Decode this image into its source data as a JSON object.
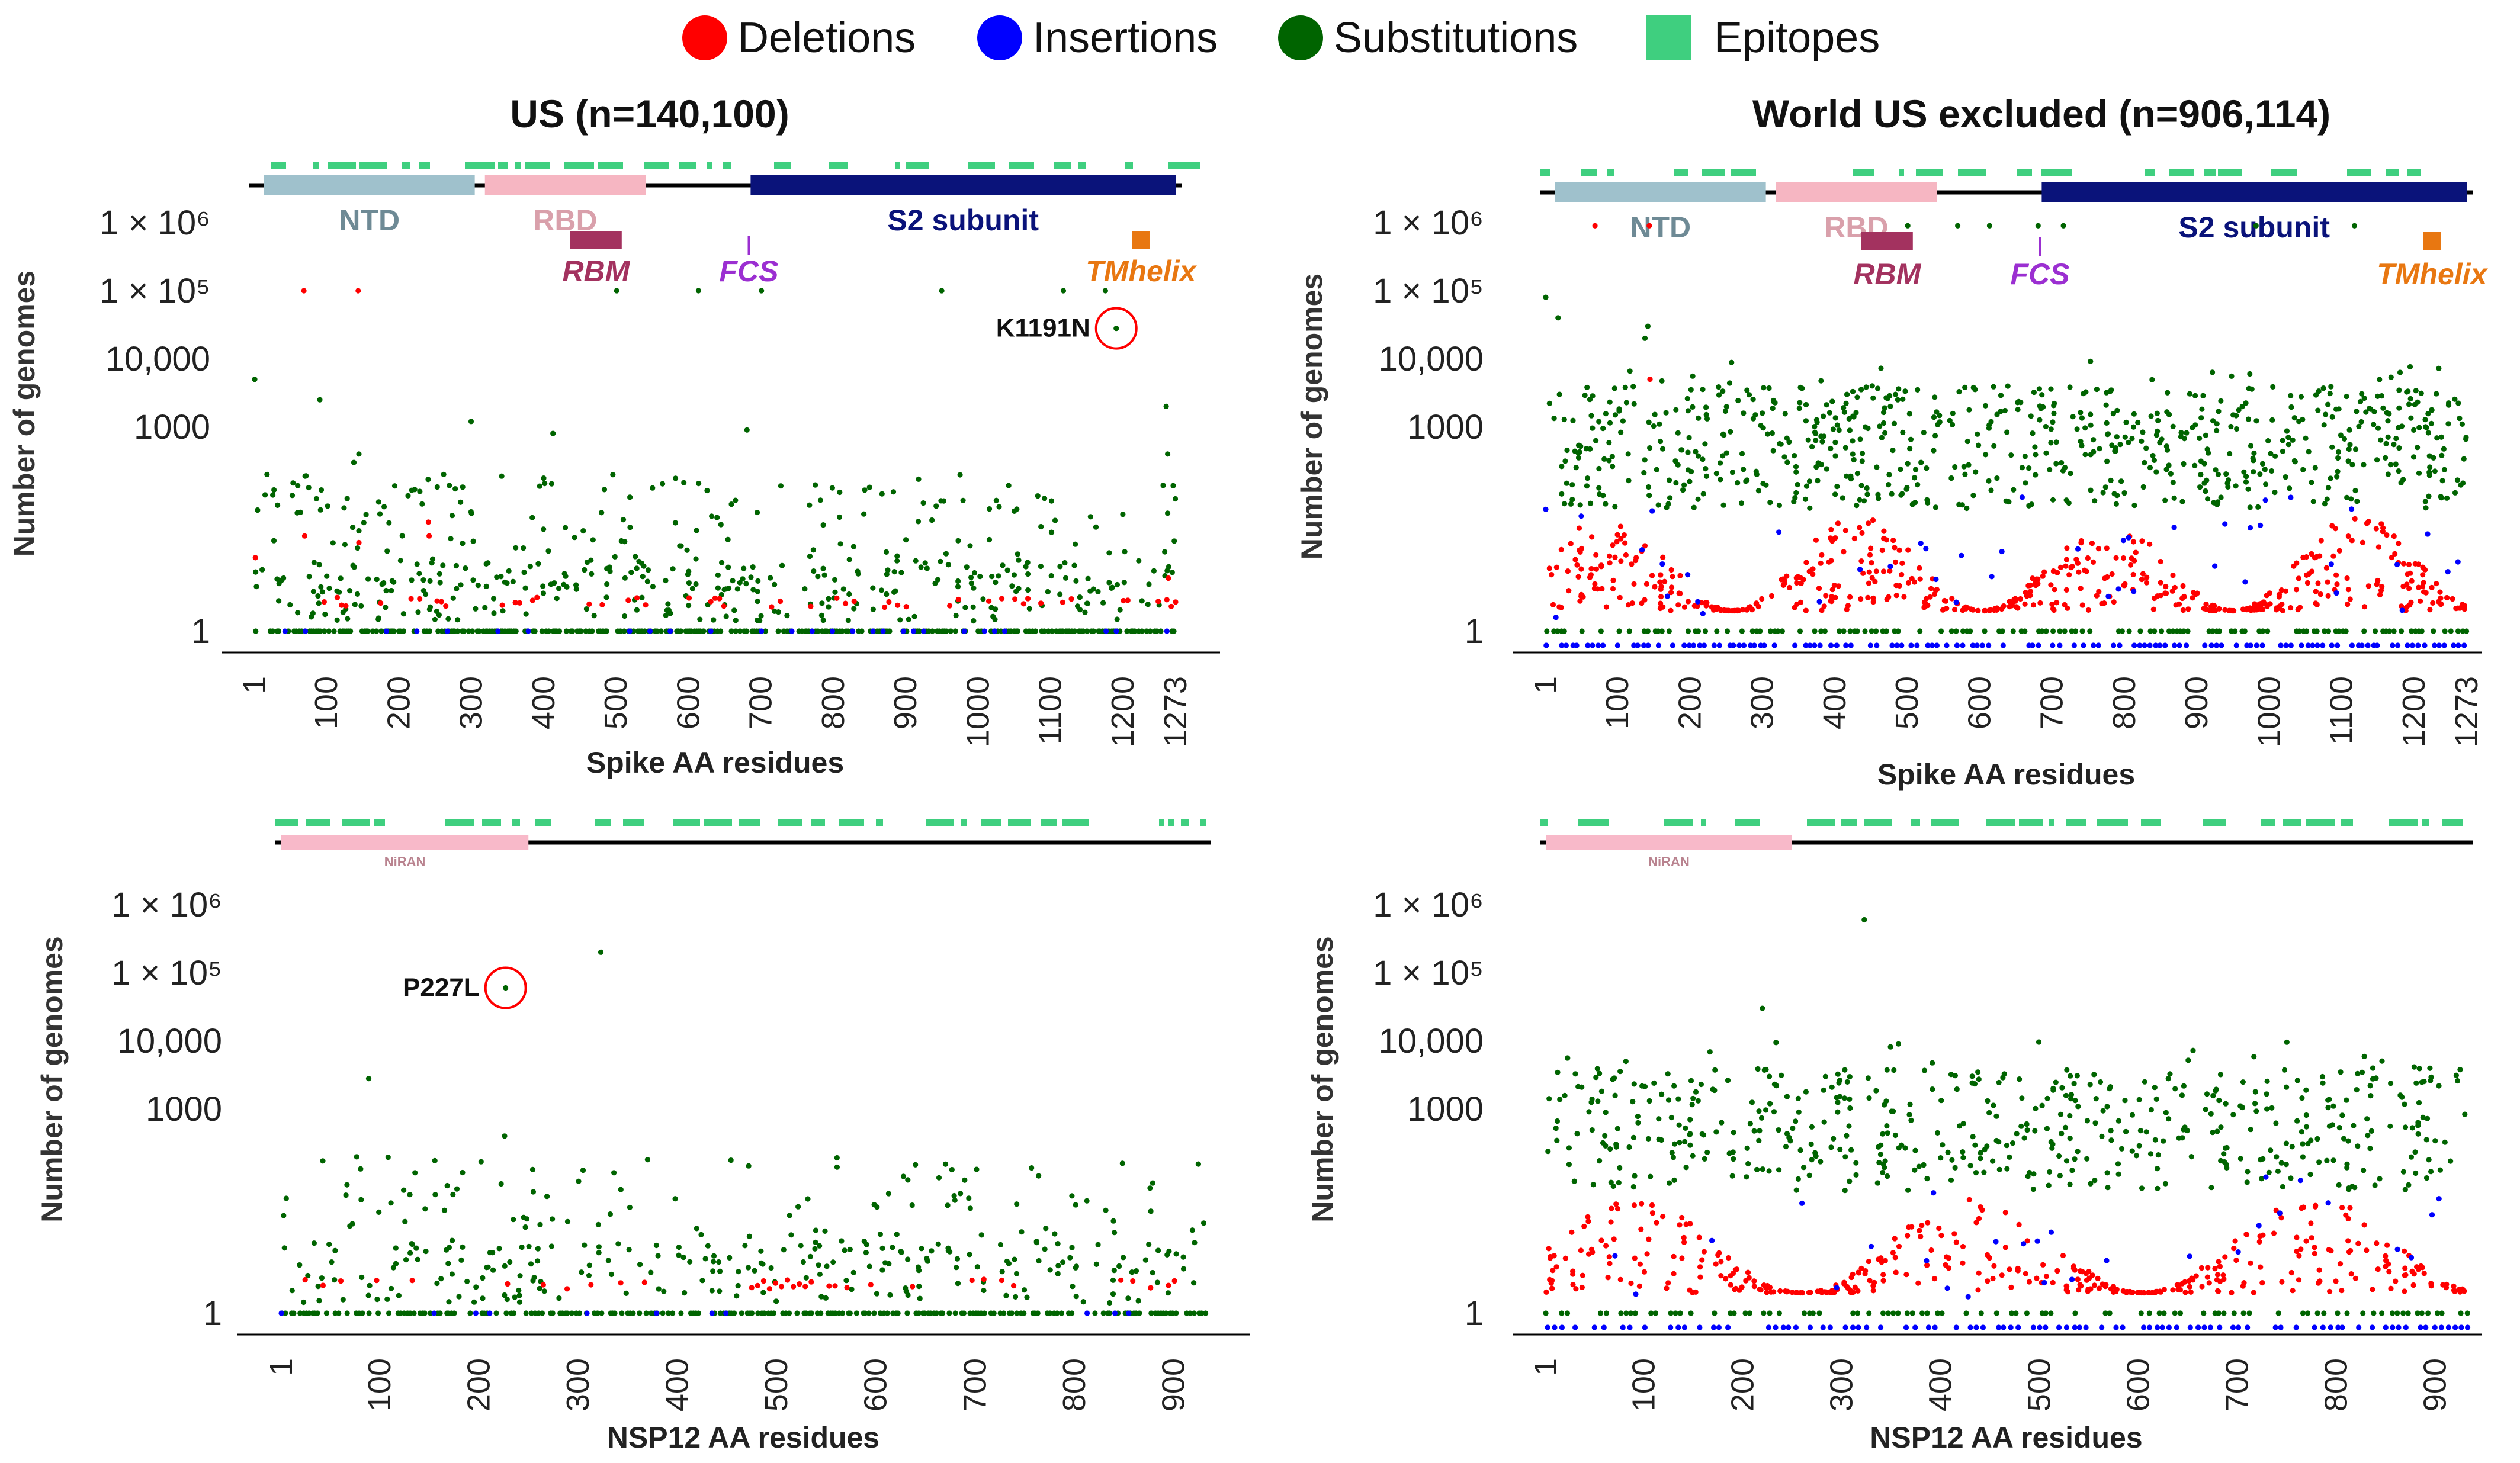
{
  "colors": {
    "deletions": "#ff0000",
    "insertions": "#0000ff",
    "substitutions": "#006400",
    "epitopes": "#3fcf7f",
    "NTD": "#9fc1cc",
    "RBD": "#f6b6c2",
    "S2": "#0a137a",
    "RBM": "#a3325f",
    "FCS": "#9b2fd1",
    "TMhelix": "#e87711",
    "NiRAN": "#f8b9c9"
  },
  "legend": [
    {
      "label": "Deletions",
      "color_key": "deletions",
      "shape": "circle"
    },
    {
      "label": "Insertions",
      "color_key": "insertions",
      "shape": "circle"
    },
    {
      "label": "Substitutions",
      "color_key": "substitutions",
      "shape": "circle"
    },
    {
      "label": "Epitopes",
      "color_key": "epitopes",
      "shape": "square"
    }
  ],
  "shared": {
    "ylabel": "Number of genomes",
    "ytick_labels": [
      "1",
      "1000",
      "10,000",
      "1 × 10⁵",
      "1 × 10⁶"
    ],
    "ytick_values": [
      1,
      1000,
      10000,
      100000,
      1000000
    ]
  },
  "chart_data": [
    {
      "id": "us-spike",
      "type": "scatter",
      "title": "US (n=140,100)",
      "xlabel": "Spike AA residues",
      "ylabel": "Number of genomes",
      "xlim": [
        1,
        1273
      ],
      "xtick_values": [
        1,
        100,
        200,
        300,
        400,
        500,
        600,
        700,
        800,
        900,
        1000,
        1100,
        1200,
        1273
      ],
      "xtick_labels": [
        "1",
        "100",
        "200",
        "300",
        "400",
        "500",
        "600",
        "700",
        "800",
        "900",
        "1000",
        "1100",
        "1200",
        "1273"
      ],
      "domains": [
        {
          "label": "NTD",
          "start": 14,
          "end": 305,
          "color_key": "NTD"
        },
        {
          "label": "RBD",
          "start": 319,
          "end": 541,
          "color_key": "RBD"
        },
        {
          "label": "S2 subunit",
          "start": 686,
          "end": 1273,
          "color_key": "S2"
        }
      ],
      "motifs": [
        {
          "label": "RBM",
          "start": 437,
          "end": 508,
          "color_key": "RBM"
        },
        {
          "label": "FCS",
          "start": 682,
          "end": 685,
          "color_key": "FCS"
        },
        {
          "label": "TMhelix",
          "start": 1213,
          "end": 1237,
          "color_key": "TMhelix"
        }
      ],
      "annotation": {
        "label": "K1191N",
        "x": 1191,
        "y": 28000
      },
      "series": [
        {
          "name": "Substitutions",
          "color_key": "substitutions",
          "profile": "us-spike",
          "peaks": [
            [
              1,
              5000
            ],
            [
              5,
              60
            ],
            [
              18,
              200
            ],
            [
              26,
              100
            ],
            [
              54,
              150
            ],
            [
              91,
              2500
            ],
            [
              138,
              300
            ],
            [
              145,
              400
            ],
            [
              222,
              120
            ],
            [
              262,
              200
            ],
            [
              300,
              1200
            ],
            [
              413,
              800
            ],
            [
              484,
              120
            ],
            [
              501,
              100000
            ],
            [
              614,
              100000
            ],
            [
              681,
              900
            ],
            [
              701,
              100000
            ],
            [
              950,
              100000
            ],
            [
              1118,
              100000
            ],
            [
              1176,
              100000
            ],
            [
              1191,
              28000
            ],
            [
              1260,
              2000
            ],
            [
              1262,
              400
            ]
          ]
        },
        {
          "name": "Deletions",
          "color_key": "deletions",
          "profile": "us-spike-del",
          "peaks": [
            [
              2,
              12
            ],
            [
              69,
              100000
            ],
            [
              70,
              25
            ],
            [
              144,
              100000
            ],
            [
              145,
              20
            ],
            [
              241,
              40
            ],
            [
              242,
              25
            ],
            [
              1263,
              6
            ]
          ]
        },
        {
          "name": "Insertions",
          "color_key": "insertions",
          "profile": "us-spike-ins",
          "peaks": []
        }
      ]
    },
    {
      "id": "world-spike",
      "type": "scatter",
      "title": "World US excluded (n=906,114)",
      "xlabel": "Spike AA residues",
      "ylabel": "Number of genomes",
      "xlim": [
        1,
        1273
      ],
      "xtick_values": [
        1,
        100,
        200,
        300,
        400,
        500,
        600,
        700,
        800,
        900,
        1000,
        1100,
        1200,
        1273
      ],
      "xtick_labels": [
        "1",
        "100",
        "200",
        "300",
        "400",
        "500",
        "600",
        "700",
        "800",
        "900",
        "1000",
        "1100",
        "1200",
        "1273"
      ],
      "domains": [
        {
          "label": "NTD",
          "start": 14,
          "end": 305,
          "color_key": "NTD"
        },
        {
          "label": "RBD",
          "start": 319,
          "end": 541,
          "color_key": "RBD"
        },
        {
          "label": "S2 subunit",
          "start": 686,
          "end": 1273,
          "color_key": "S2"
        }
      ],
      "motifs": [
        {
          "label": "RBM",
          "start": 437,
          "end": 508,
          "color_key": "RBM"
        },
        {
          "label": "FCS",
          "start": 682,
          "end": 685,
          "color_key": "FCS"
        },
        {
          "label": "TMhelix",
          "start": 1213,
          "end": 1237,
          "color_key": "TMhelix"
        }
      ],
      "series": [
        {
          "name": "Substitutions",
          "color_key": "substitutions",
          "profile": "world-spike",
          "peaks": [
            [
              1,
              80000
            ],
            [
              18,
              40000
            ],
            [
              20,
              3000
            ],
            [
              138,
              20000
            ],
            [
              142,
              30000
            ],
            [
              417,
              3000
            ],
            [
              452,
              4000
            ],
            [
              477,
              2000
            ],
            [
              484,
              3000
            ],
            [
              501,
              900000
            ],
            [
              570,
              900000
            ],
            [
              614,
              900000
            ],
            [
              681,
              900000
            ],
            [
              716,
              900000
            ],
            [
              982,
              900000
            ],
            [
              1118,
              900000
            ]
          ]
        },
        {
          "name": "Deletions",
          "color_key": "deletions",
          "profile": "world-spike-del",
          "peaks": [
            [
              69,
              900000
            ],
            [
              144,
              900000
            ],
            [
              145,
              5000
            ]
          ]
        },
        {
          "name": "Insertions",
          "color_key": "insertions",
          "profile": "world-spike-ins",
          "peaks": []
        }
      ]
    },
    {
      "id": "us-nsp12",
      "type": "scatter",
      "title": "",
      "xlabel": "NSP12 AA residues",
      "ylabel": "Number of genomes",
      "xlim": [
        1,
        932
      ],
      "xtick_values": [
        1,
        100,
        200,
        300,
        400,
        500,
        600,
        700,
        800,
        900
      ],
      "xtick_labels": [
        "1",
        "100",
        "200",
        "300",
        "400",
        "500",
        "600",
        "700",
        "800",
        "900"
      ],
      "domains": [
        {
          "label": "NiRAN",
          "start": 1,
          "end": 250,
          "color_key": "NiRAN"
        }
      ],
      "motifs": [],
      "annotation": {
        "label": "P227L",
        "x": 227,
        "y": 60000
      },
      "series": [
        {
          "name": "Substitutions",
          "color_key": "substitutions",
          "profile": "us-nsp12",
          "peaks": [
            [
              89,
              2800
            ],
            [
              227,
              60000
            ],
            [
              323,
              200000
            ],
            [
              226,
              400
            ]
          ]
        },
        {
          "name": "Deletions",
          "color_key": "deletions",
          "profile": "us-nsp12-del",
          "peaks": []
        },
        {
          "name": "Insertions",
          "color_key": "insertions",
          "profile": "us-nsp12-ins",
          "peaks": []
        }
      ]
    },
    {
      "id": "world-nsp12",
      "type": "scatter",
      "title": "",
      "xlabel": "NSP12 AA residues",
      "ylabel": "Number of genomes",
      "xlim": [
        1,
        932
      ],
      "xtick_values": [
        1,
        100,
        200,
        300,
        400,
        500,
        600,
        700,
        800,
        900
      ],
      "xtick_labels": [
        "1",
        "100",
        "200",
        "300",
        "400",
        "500",
        "600",
        "700",
        "800",
        "900"
      ],
      "domains": [
        {
          "label": "NiRAN",
          "start": 1,
          "end": 250,
          "color_key": "NiRAN"
        }
      ],
      "motifs": [],
      "series": [
        {
          "name": "Substitutions",
          "color_key": "substitutions",
          "profile": "world-nsp12",
          "peaks": [
            [
              82,
              5000
            ],
            [
              227,
              3000
            ],
            [
              220,
              30000
            ],
            [
              323,
              600000
            ],
            [
              514,
              2000
            ],
            [
              718,
              1200
            ],
            [
              730,
              1000
            ]
          ]
        },
        {
          "name": "Deletions",
          "color_key": "deletions",
          "profile": "world-nsp12-del",
          "peaks": []
        },
        {
          "name": "Insertions",
          "color_key": "insertions",
          "profile": "world-nsp12-ins",
          "peaks": []
        }
      ]
    }
  ]
}
